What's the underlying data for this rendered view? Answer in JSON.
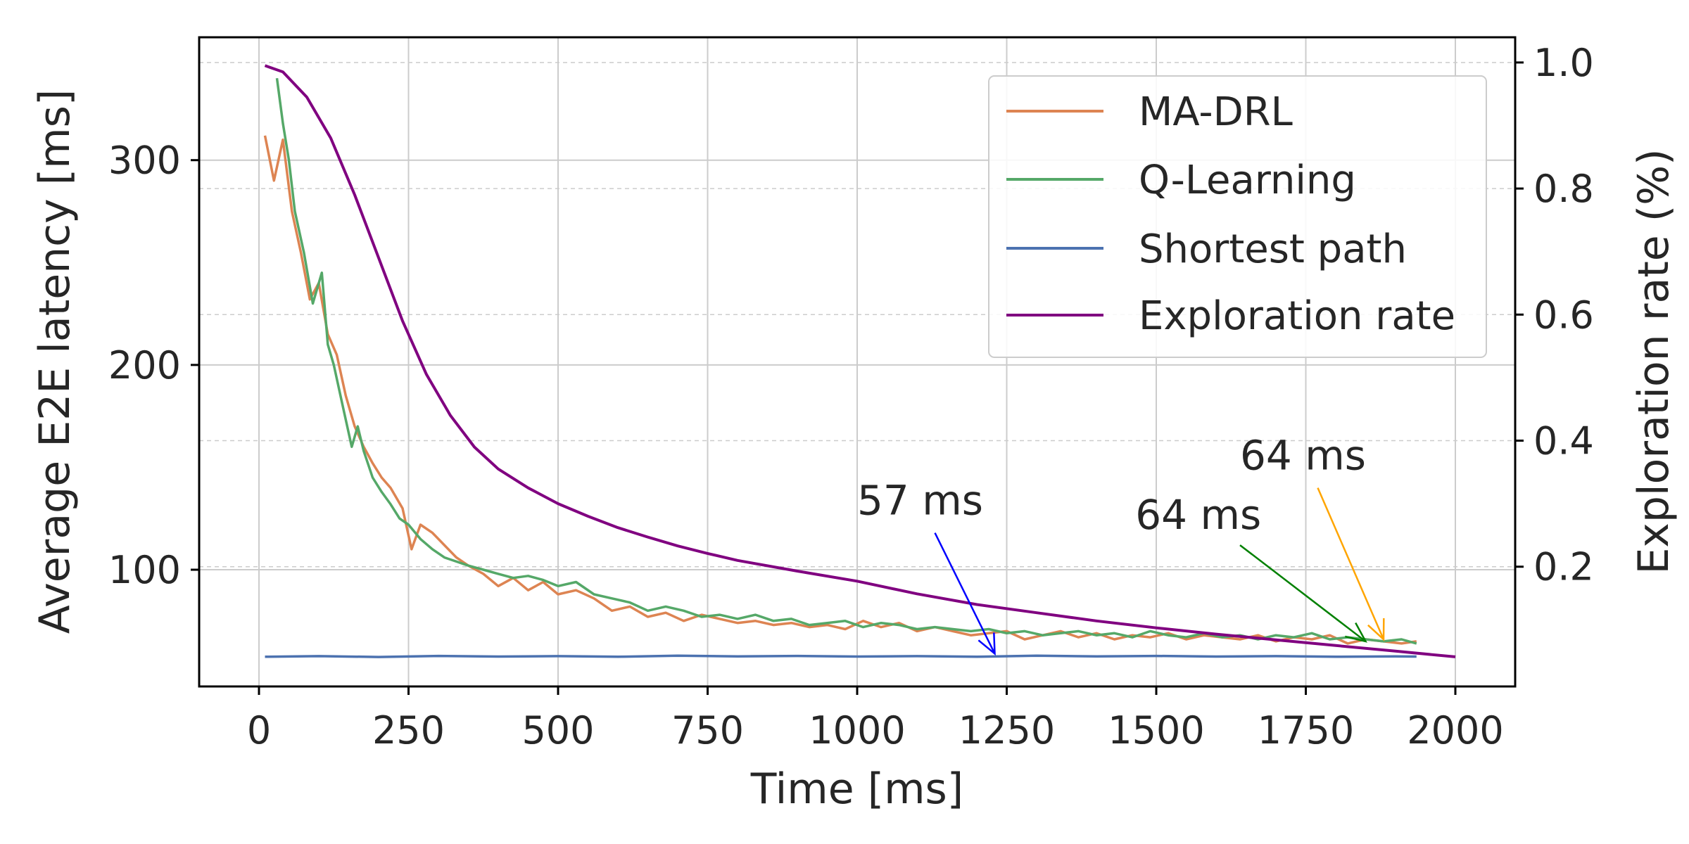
{
  "chart_data": {
    "type": "line",
    "title": "",
    "xlabel": "Time [ms]",
    "ylabel": "Average E2E latency [ms]",
    "y2label": "Exploration rate (%)",
    "xlim": [
      -100,
      2100
    ],
    "ylim": [
      43,
      360
    ],
    "y2lim": [
      0.01,
      1.04
    ],
    "xticks": [
      0,
      250,
      500,
      750,
      1000,
      1250,
      1500,
      1750,
      2000
    ],
    "xtick_labels": [
      "0",
      "250",
      "500",
      "750",
      "1000",
      "1250",
      "1500",
      "1750",
      "2000"
    ],
    "yticks": [
      100,
      200,
      300
    ],
    "ytick_labels": [
      "100",
      "200",
      "300"
    ],
    "y2ticks": [
      0.2,
      0.4,
      0.6,
      0.8,
      1.0
    ],
    "y2tick_labels": [
      "0.2",
      "0.4",
      "0.6",
      "0.8",
      "1.0"
    ],
    "grid": true,
    "legend_position": "top-right",
    "series": [
      {
        "name": "MA-DRL",
        "color": "#dd8452",
        "axis": "left",
        "x": [
          10,
          25,
          40,
          55,
          70,
          85,
          100,
          115,
          130,
          145,
          160,
          175,
          190,
          205,
          220,
          240,
          255,
          270,
          290,
          310,
          330,
          350,
          375,
          400,
          425,
          450,
          475,
          500,
          530,
          560,
          590,
          620,
          650,
          680,
          710,
          740,
          770,
          800,
          830,
          860,
          890,
          920,
          950,
          980,
          1010,
          1040,
          1070,
          1100,
          1130,
          1160,
          1190,
          1220,
          1250,
          1280,
          1310,
          1340,
          1370,
          1400,
          1430,
          1460,
          1490,
          1520,
          1550,
          1580,
          1610,
          1640,
          1670,
          1700,
          1730,
          1760,
          1790,
          1820,
          1850,
          1880,
          1910,
          1935
        ],
        "y": [
          312,
          290,
          310,
          275,
          255,
          232,
          240,
          215,
          205,
          185,
          170,
          160,
          152,
          145,
          140,
          130,
          110,
          122,
          118,
          112,
          106,
          102,
          98,
          92,
          96,
          90,
          94,
          88,
          90,
          86,
          80,
          82,
          77,
          79,
          75,
          78,
          76,
          74,
          75,
          73,
          74,
          72,
          73,
          71,
          75,
          72,
          74,
          70,
          72,
          70,
          68,
          69,
          70,
          66,
          68,
          70,
          67,
          69,
          66,
          68,
          67,
          69,
          66,
          68,
          67,
          66,
          68,
          65,
          67,
          66,
          68,
          64,
          66,
          65,
          64,
          65
        ]
      },
      {
        "name": "Q-Learning",
        "color": "#55a868",
        "axis": "left",
        "x": [
          30,
          40,
          50,
          60,
          75,
          90,
          105,
          115,
          125,
          140,
          155,
          165,
          175,
          190,
          205,
          220,
          235,
          250,
          270,
          290,
          310,
          330,
          350,
          375,
          400,
          425,
          450,
          475,
          500,
          530,
          560,
          590,
          620,
          650,
          680,
          710,
          740,
          770,
          800,
          830,
          860,
          890,
          920,
          950,
          980,
          1010,
          1040,
          1070,
          1100,
          1130,
          1160,
          1190,
          1220,
          1250,
          1280,
          1310,
          1340,
          1370,
          1400,
          1430,
          1460,
          1490,
          1520,
          1550,
          1580,
          1610,
          1640,
          1670,
          1700,
          1730,
          1760,
          1790,
          1820,
          1850,
          1880,
          1910,
          1935
        ],
        "y": [
          340,
          318,
          300,
          275,
          255,
          230,
          245,
          210,
          200,
          180,
          160,
          170,
          158,
          145,
          138,
          132,
          125,
          122,
          115,
          110,
          106,
          104,
          102,
          100,
          98,
          96,
          97,
          95,
          92,
          94,
          88,
          86,
          84,
          80,
          82,
          80,
          77,
          78,
          76,
          78,
          75,
          76,
          73,
          74,
          75,
          72,
          74,
          73,
          71,
          72,
          71,
          70,
          71,
          69,
          70,
          68,
          69,
          70,
          68,
          69,
          67,
          70,
          68,
          67,
          69,
          67,
          68,
          66,
          68,
          67,
          69,
          66,
          67,
          66,
          65,
          66,
          64
        ]
      },
      {
        "name": "Shortest path",
        "color": "#4c72b0",
        "axis": "left",
        "x": [
          10,
          100,
          200,
          300,
          400,
          500,
          600,
          700,
          800,
          900,
          1000,
          1100,
          1200,
          1300,
          1400,
          1500,
          1600,
          1700,
          1800,
          1900,
          1935
        ],
        "y": [
          57.5,
          57.8,
          57.4,
          57.9,
          57.6,
          57.8,
          57.5,
          58.0,
          57.7,
          57.9,
          57.6,
          57.8,
          57.5,
          58.0,
          57.7,
          57.9,
          57.6,
          57.8,
          57.5,
          57.7,
          57.6
        ]
      },
      {
        "name": "Exploration rate",
        "color": "#800080",
        "axis": "right",
        "x": [
          10,
          40,
          80,
          120,
          160,
          200,
          240,
          280,
          320,
          360,
          400,
          450,
          500,
          550,
          600,
          650,
          700,
          750,
          800,
          900,
          1000,
          1100,
          1200,
          1300,
          1400,
          1500,
          1600,
          1700,
          1800,
          1900,
          2000
        ],
        "y": [
          0.995,
          0.985,
          0.945,
          0.88,
          0.79,
          0.69,
          0.59,
          0.505,
          0.44,
          0.39,
          0.355,
          0.325,
          0.3,
          0.28,
          0.262,
          0.247,
          0.233,
          0.221,
          0.21,
          0.193,
          0.177,
          0.157,
          0.14,
          0.127,
          0.114,
          0.103,
          0.093,
          0.084,
          0.075,
          0.066,
          0.057
        ]
      }
    ],
    "annotations": [
      {
        "text": "57 ms",
        "color": "#0000ff",
        "text_x": 1000,
        "text_y": 127,
        "tail_x": 1130,
        "tail_y": 118,
        "head_x": 1230,
        "head_y": 59
      },
      {
        "text": "64 ms",
        "color": "#008000",
        "text_x": 1465,
        "text_y": 120,
        "tail_x": 1640,
        "tail_y": 112,
        "head_x": 1850,
        "head_y": 65
      },
      {
        "text": "64 ms",
        "color": "#ffa500",
        "text_x": 1640,
        "text_y": 149,
        "tail_x": 1770,
        "tail_y": 140,
        "head_x": 1880,
        "head_y": 66
      }
    ]
  }
}
